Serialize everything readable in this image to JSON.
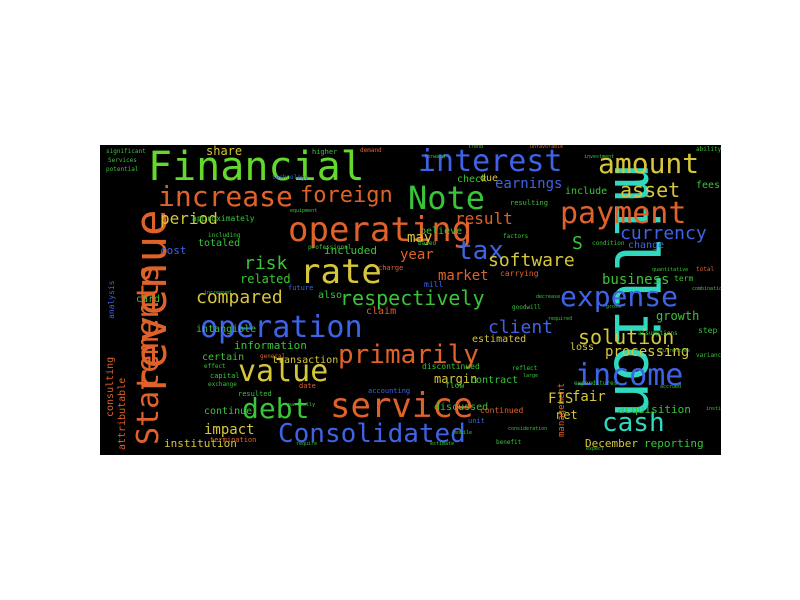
{
  "palette": {
    "green": "#39c53a",
    "orange": "#e0622b",
    "blue": "#3f63e6",
    "yellow": "#d6c63a",
    "cyan": "#2fd9c0",
    "lime": "#63d92c",
    "background": "#000000"
  },
  "words": [
    {
      "text": "million",
      "color": "#2fd9c0"
    },
    {
      "text": "revenue",
      "color": "#e0622b"
    },
    {
      "text": "Financial",
      "color": "#63d92c"
    },
    {
      "text": "interest",
      "color": "#3f63e6"
    },
    {
      "text": "amount",
      "color": "#d6c63a"
    },
    {
      "text": "operating",
      "color": "#e0622b"
    },
    {
      "text": "increase",
      "color": "#e0622b"
    },
    {
      "text": "Note",
      "color": "#39c53a"
    },
    {
      "text": "payment",
      "color": "#e0622b"
    },
    {
      "text": "foreign",
      "color": "#e0622b"
    },
    {
      "text": "Statements",
      "color": "#e0622b"
    },
    {
      "text": "rate",
      "color": "#d6c63a"
    },
    {
      "text": "tax",
      "color": "#3f63e6"
    },
    {
      "text": "expense",
      "color": "#3f63e6"
    },
    {
      "text": "operation",
      "color": "#3f63e6"
    },
    {
      "text": "income",
      "color": "#3f63e6"
    },
    {
      "text": "value",
      "color": "#d6c63a"
    },
    {
      "text": "service",
      "color": "#e0622b"
    },
    {
      "text": "debt",
      "color": "#39c53a"
    },
    {
      "text": "cash",
      "color": "#2fd9c0"
    },
    {
      "text": "Consolidated",
      "color": "#3f63e6"
    },
    {
      "text": "primarily",
      "color": "#e0622b"
    },
    {
      "text": "respectively",
      "color": "#39c53a"
    },
    {
      "text": "compared",
      "color": "#d6c63a"
    },
    {
      "text": "solution",
      "color": "#d6c63a"
    },
    {
      "text": "software",
      "color": "#d6c63a"
    },
    {
      "text": "client",
      "color": "#3f63e6"
    },
    {
      "text": "risk",
      "color": "#39c53a"
    },
    {
      "text": "asset",
      "color": "#d6c63a"
    },
    {
      "text": "currency",
      "color": "#3f63e6"
    },
    {
      "text": "period",
      "color": "#d6c63a"
    },
    {
      "text": "result",
      "color": "#e0622b"
    },
    {
      "text": "earnings",
      "color": "#3f63e6"
    },
    {
      "text": "processing",
      "color": "#d6c63a"
    },
    {
      "text": "business",
      "color": "#39c53a"
    },
    {
      "text": "growth",
      "color": "#39c53a"
    },
    {
      "text": "impact",
      "color": "#d6c63a"
    },
    {
      "text": "FIS",
      "color": "#d6c63a"
    },
    {
      "text": "fair",
      "color": "#d6c63a"
    },
    {
      "text": "net",
      "color": "#d6c63a"
    },
    {
      "text": "year",
      "color": "#e0622b"
    },
    {
      "text": "market",
      "color": "#e0622b"
    },
    {
      "text": "may",
      "color": "#d6c63a"
    },
    {
      "text": "share",
      "color": "#d6c63a"
    },
    {
      "text": "margin",
      "color": "#d6c63a"
    },
    {
      "text": "related",
      "color": "#39c53a"
    },
    {
      "text": "included",
      "color": "#39c53a"
    },
    {
      "text": "information",
      "color": "#39c53a"
    },
    {
      "text": "institution",
      "color": "#d6c63a"
    },
    {
      "text": "acquisition",
      "color": "#39c53a"
    },
    {
      "text": "December",
      "color": "#d6c63a"
    },
    {
      "text": "reporting",
      "color": "#39c53a"
    },
    {
      "text": "cost",
      "color": "#3f63e6"
    },
    {
      "text": "certain",
      "color": "#39c53a"
    },
    {
      "text": "check",
      "color": "#39c53a"
    },
    {
      "text": "believe",
      "color": "#39c53a"
    },
    {
      "text": "discussed",
      "color": "#39c53a"
    },
    {
      "text": "estimated",
      "color": "#d6c63a"
    },
    {
      "text": "contract",
      "color": "#39c53a"
    },
    {
      "text": "include",
      "color": "#39c53a"
    },
    {
      "text": "fees",
      "color": "#39c53a"
    },
    {
      "text": "change",
      "color": "#3f63e6"
    },
    {
      "text": "continue",
      "color": "#39c53a"
    },
    {
      "text": "card",
      "color": "#39c53a"
    },
    {
      "text": "totaled",
      "color": "#39c53a"
    },
    {
      "text": "intangible",
      "color": "#39c53a"
    },
    {
      "text": "transaction",
      "color": "#d6c63a"
    },
    {
      "text": "also",
      "color": "#39c53a"
    },
    {
      "text": "claim",
      "color": "#e0622b"
    },
    {
      "text": "loss",
      "color": "#d6c63a"
    },
    {
      "text": "management",
      "color": "#e0622b"
    },
    {
      "text": "attributable",
      "color": "#e0622b"
    },
    {
      "text": "consulting",
      "color": "#e0622b"
    },
    {
      "text": "due",
      "color": "#d6c63a"
    },
    {
      "text": "S",
      "color": "#39c53a"
    },
    {
      "text": "approximately",
      "color": "#39c53a"
    },
    {
      "text": "mill",
      "color": "#3f63e6"
    },
    {
      "text": "resulting",
      "color": "#39c53a"
    },
    {
      "text": "discontinued",
      "color": "#39c53a"
    },
    {
      "text": "analysis",
      "color": "#3f63e6"
    },
    {
      "text": "continued",
      "color": "#e0622b"
    },
    {
      "text": "term",
      "color": "#39c53a"
    },
    {
      "text": "step",
      "color": "#39c53a"
    },
    {
      "text": "flow",
      "color": "#39c53a"
    },
    {
      "text": "accounting",
      "color": "#3f63e6"
    },
    {
      "text": "higher",
      "color": "#39c53a"
    },
    {
      "text": "future",
      "color": "#3f63e6"
    },
    {
      "text": "carrying",
      "color": "#e0622b"
    },
    {
      "text": "technology",
      "color": "#3f63e6"
    },
    {
      "text": "capital",
      "color": "#39c53a"
    },
    {
      "text": "exchange",
      "color": "#39c53a"
    },
    {
      "text": "resulted",
      "color": "#39c53a"
    },
    {
      "text": "termination",
      "color": "#e0622b"
    },
    {
      "text": "general",
      "color": "#e0622b"
    },
    {
      "text": "date",
      "color": "#e0622b"
    },
    {
      "text": "professional",
      "color": "#39c53a"
    },
    {
      "text": "charge",
      "color": "#e0622b"
    },
    {
      "text": "including",
      "color": "#39c53a"
    },
    {
      "text": "effect",
      "color": "#39c53a"
    },
    {
      "text": "unit",
      "color": "#3f63e6"
    },
    {
      "text": "factors",
      "color": "#39c53a"
    },
    {
      "text": "based",
      "color": "#39c53a"
    },
    {
      "text": "demand",
      "color": "#e0622b"
    },
    {
      "text": "goodwill",
      "color": "#39c53a"
    },
    {
      "text": "condition",
      "color": "#39c53a"
    },
    {
      "text": "significant",
      "color": "#39c53a"
    },
    {
      "text": "Services",
      "color": "#39c53a"
    },
    {
      "text": "total",
      "color": "#e0622b"
    },
    {
      "text": "equipment",
      "color": "#39c53a"
    },
    {
      "text": "ability",
      "color": "#39c53a"
    },
    {
      "text": "assumptions",
      "color": "#39c53a"
    },
    {
      "text": "expenditures",
      "color": "#39c53a"
    },
    {
      "text": "investment",
      "color": "#39c53a"
    },
    {
      "text": "reflect",
      "color": "#39c53a"
    },
    {
      "text": "consideration",
      "color": "#39c53a"
    },
    {
      "text": "benefit",
      "color": "#39c53a"
    },
    {
      "text": "variances",
      "color": "#39c53a"
    },
    {
      "text": "partially",
      "color": "#39c53a"
    },
    {
      "text": "quantitative",
      "color": "#39c53a"
    },
    {
      "text": "large",
      "color": "#39c53a"
    },
    {
      "text": "trend",
      "color": "#39c53a"
    },
    {
      "text": "potential",
      "color": "#39c53a"
    },
    {
      "text": "estimate",
      "color": "#39c53a"
    },
    {
      "text": "mobile",
      "color": "#39c53a"
    },
    {
      "text": "decrease",
      "color": "#39c53a"
    },
    {
      "text": "require",
      "color": "#39c53a"
    },
    {
      "text": "forward",
      "color": "#39c53a"
    },
    {
      "text": "unfavorable",
      "color": "#e0622b"
    },
    {
      "text": "required",
      "color": "#39c53a"
    },
    {
      "text": "combination",
      "color": "#39c53a"
    },
    {
      "text": "currencies",
      "color": "#39c53a"
    },
    {
      "text": "increased",
      "color": "#39c53a"
    },
    {
      "text": "institutions",
      "color": "#39c53a"
    },
    {
      "text": "accrued",
      "color": "#39c53a"
    },
    {
      "text": "gross",
      "color": "#39c53a"
    },
    {
      "text": "expect",
      "color": "#39c53a"
    }
  ]
}
